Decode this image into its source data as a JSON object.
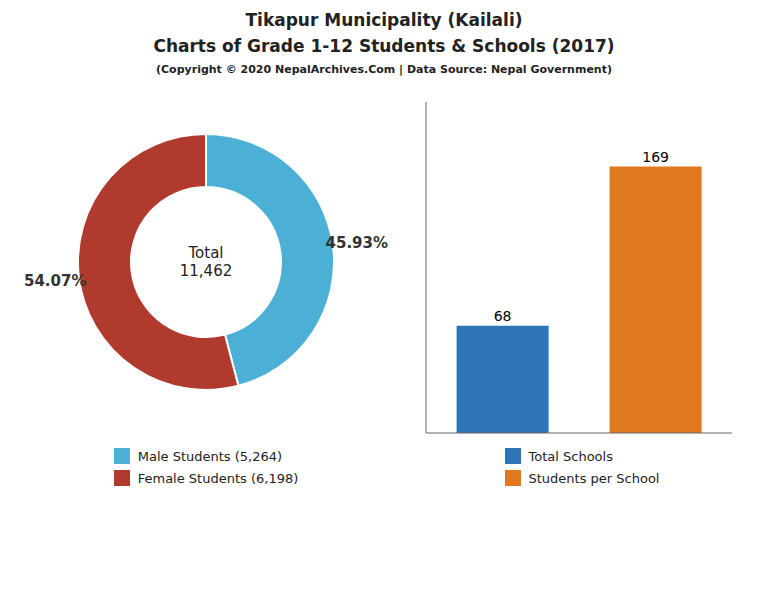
{
  "chart_data": [
    {
      "type": "pie",
      "title": "Tikapur Municipality (Kailali)\nCharts of Grade 1-12 Students & Schools (2017)",
      "subtitle": "(Copyright © 2020 NepalArchives.Com | Data Source: Nepal Government)",
      "categories": [
        "Male Students (5,264)",
        "Female Students (6,198)"
      ],
      "values": [
        45.93,
        54.07
      ],
      "value_labels": [
        "45.93%",
        "54.07%"
      ],
      "colors": [
        "#4bafd6",
        "#b03a2e"
      ],
      "annotations": [
        "Total\n11,462"
      ],
      "data_labels": true,
      "legend": "bottom"
    },
    {
      "type": "bar",
      "categories": [
        "Total Schools",
        "Students per School"
      ],
      "values": [
        68,
        169
      ],
      "colors": [
        "#2e75b6",
        "#e07820"
      ],
      "ylim": [
        0,
        210
      ],
      "data_labels": true,
      "tick_labels": false,
      "legend": "bottom"
    }
  ]
}
